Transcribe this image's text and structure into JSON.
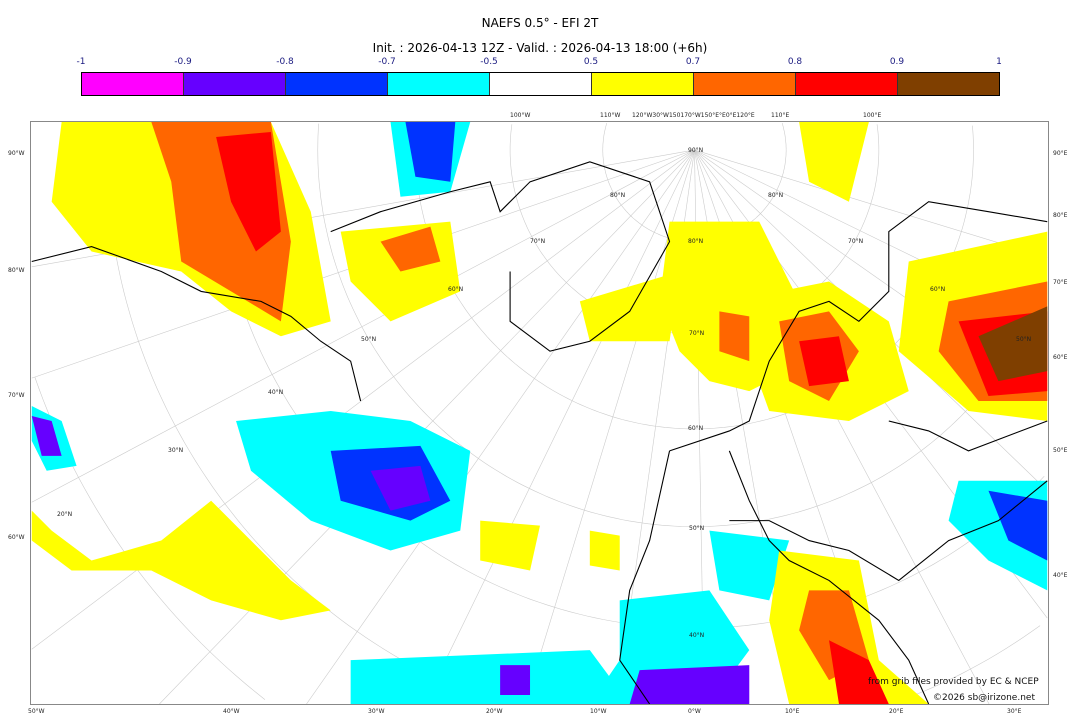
{
  "header": {
    "title": "NAEFS 0.5° - EFI 2T",
    "subtitle": "Init. : 2026-04-13 12Z - Valid. : 2026-04-13 18:00 (+6h)"
  },
  "colorbar": {
    "ticks": [
      "-1",
      "-0.9",
      "-0.8",
      "-0.7",
      "-0.5",
      "0.5",
      "0.7",
      "0.8",
      "0.9",
      "1"
    ],
    "colors": [
      "#ff00ff",
      "#6600ff",
      "#0033ff",
      "#00ffff",
      "#ffffff",
      "#ffff00",
      "#ff6600",
      "#ff0000",
      "#e00000",
      "#7f3f00"
    ]
  },
  "axes": {
    "left": [
      "90°W",
      "80°W",
      "70°W",
      "60°W"
    ],
    "bottom": [
      "50°W",
      "40°W",
      "30°W",
      "20°W",
      "10°W",
      "0°W",
      "10°E",
      "20°E",
      "30°E"
    ],
    "right": [
      "90°E",
      "80°E",
      "70°E",
      "60°E",
      "50°E",
      "40°E"
    ],
    "top": [
      "100°W",
      "110°W",
      "120°W30°W150170°W150°E°E0°E120°E",
      "110°E",
      "100°E"
    ],
    "lat_center": [
      "90°N",
      "80°N",
      "70°N",
      "60°N",
      "50°N",
      "40°N"
    ],
    "lat_left": [
      "80°N",
      "70°N",
      "60°N",
      "50°N",
      "40°N",
      "30°N",
      "20°N"
    ],
    "lat_right": [
      "80°N",
      "70°N",
      "60°N",
      "50°N"
    ]
  },
  "credits": {
    "source": "from grib files provided by EC & NCEP",
    "copyright": "©2026 sb@irizone.net"
  }
}
